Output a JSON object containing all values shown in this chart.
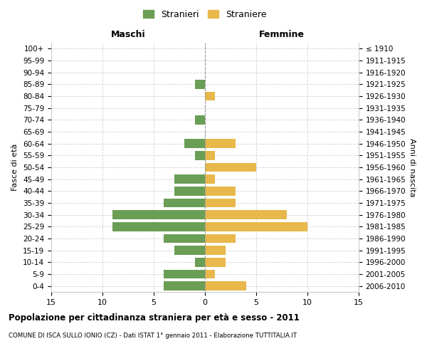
{
  "age_groups": [
    "0-4",
    "5-9",
    "10-14",
    "15-19",
    "20-24",
    "25-29",
    "30-34",
    "35-39",
    "40-44",
    "45-49",
    "50-54",
    "55-59",
    "60-64",
    "65-69",
    "70-74",
    "75-79",
    "80-84",
    "85-89",
    "90-94",
    "95-99",
    "100+"
  ],
  "birth_years": [
    "2006-2010",
    "2001-2005",
    "1996-2000",
    "1991-1995",
    "1986-1990",
    "1981-1985",
    "1976-1980",
    "1971-1975",
    "1966-1970",
    "1961-1965",
    "1956-1960",
    "1951-1955",
    "1946-1950",
    "1941-1945",
    "1936-1940",
    "1931-1935",
    "1926-1930",
    "1921-1925",
    "1916-1920",
    "1911-1915",
    "≤ 1910"
  ],
  "males": [
    4,
    4,
    1,
    3,
    4,
    9,
    9,
    4,
    3,
    3,
    0,
    1,
    2,
    0,
    1,
    0,
    0,
    1,
    0,
    0,
    0
  ],
  "females": [
    4,
    1,
    2,
    2,
    3,
    10,
    8,
    3,
    3,
    1,
    5,
    1,
    3,
    0,
    0,
    0,
    1,
    0,
    0,
    0,
    0
  ],
  "male_color": "#6b9e55",
  "female_color": "#e8b84b",
  "background_color": "#ffffff",
  "grid_color": "#cccccc",
  "center_line_color": "#999999",
  "xlim": 15,
  "title": "Popolazione per cittadinanza straniera per età e sesso - 2011",
  "subtitle": "COMUNE DI ISCA SULLO IONIO (CZ) - Dati ISTAT 1° gennaio 2011 - Elaborazione TUTTITALIA.IT",
  "ylabel_left": "Fasce di età",
  "ylabel_right": "Anni di nascita",
  "xlabel_maschi": "Maschi",
  "xlabel_femmine": "Femmine",
  "legend_stranieri": "Stranieri",
  "legend_straniere": "Straniere"
}
